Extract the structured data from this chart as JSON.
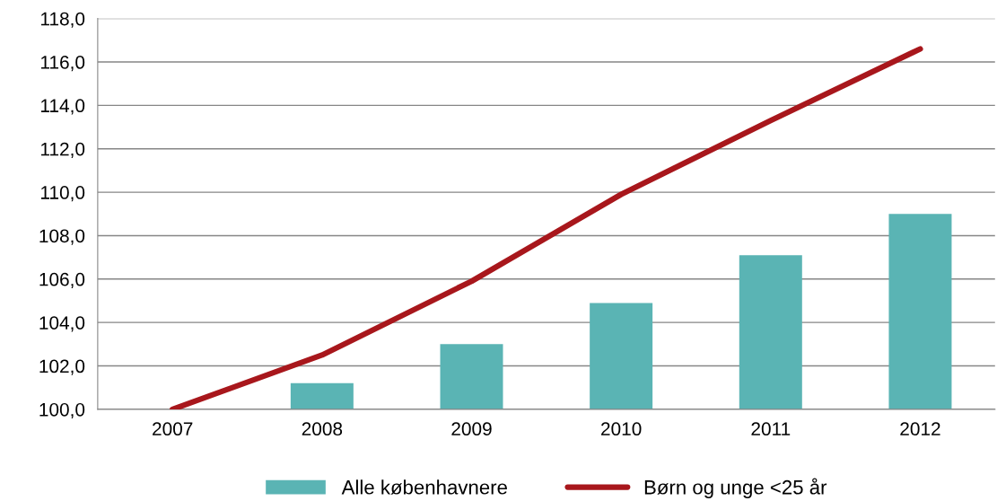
{
  "chart_data": {
    "type": "bar",
    "categories": [
      "2007",
      "2008",
      "2009",
      "2010",
      "2011",
      "2012"
    ],
    "series": [
      {
        "name": "Alle københavnere",
        "color": "#5ab4b4",
        "values": [
          100.0,
          101.2,
          103.0,
          104.9,
          107.1,
          109.0
        ]
      },
      {
        "name": "Børn og unge <25 år",
        "type": "line",
        "color": "#a8171c",
        "values": [
          100.0,
          102.5,
          105.9,
          109.9,
          113.3,
          116.6
        ]
      }
    ],
    "ylim": [
      100,
      118
    ],
    "yticks": [
      {
        "value": 100,
        "label": "100,0"
      },
      {
        "value": 102,
        "label": "102,0"
      },
      {
        "value": 104,
        "label": "104,0"
      },
      {
        "value": 106,
        "label": "106,0"
      },
      {
        "value": 108,
        "label": "108,0"
      },
      {
        "value": 110,
        "label": "110,0"
      },
      {
        "value": 112,
        "label": "112,0"
      },
      {
        "value": 114,
        "label": "114,0"
      },
      {
        "value": 116,
        "label": "116,0"
      },
      {
        "value": 118,
        "label": "118,0"
      }
    ],
    "grid": "y",
    "legend": "bottom",
    "marker": "none",
    "line_style": "solid"
  }
}
